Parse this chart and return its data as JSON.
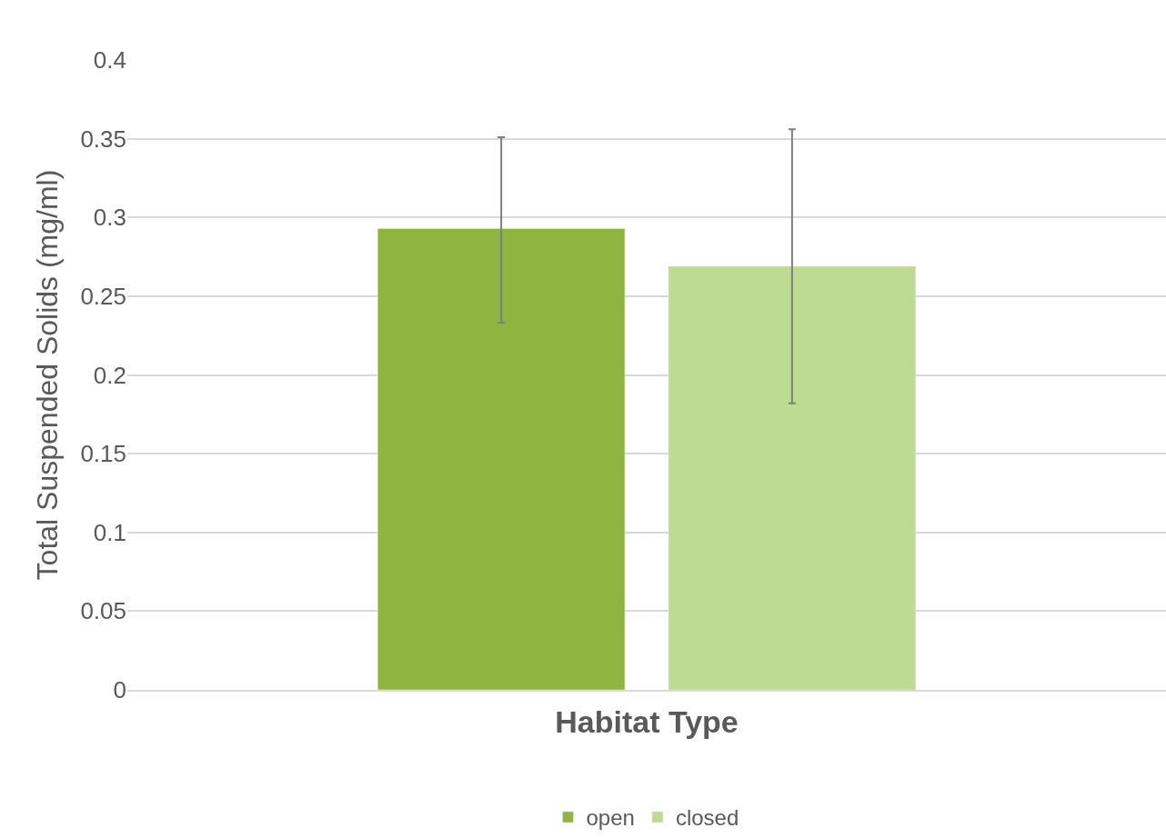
{
  "chart_data": {
    "type": "bar",
    "xlabel": "Habitat Type",
    "ylabel": "Total Suspended Solids (mg/ml)",
    "categories": [
      null
    ],
    "series": [
      {
        "name": "open",
        "color": "#8fb440",
        "values": [
          0.293
        ],
        "errors": [
          [
            0.233,
            0.351
          ]
        ]
      },
      {
        "name": "closed",
        "color": "#bedb92",
        "values": [
          0.269
        ],
        "errors": [
          [
            0.182,
            0.356
          ]
        ]
      }
    ],
    "ylim": [
      0,
      0.4
    ],
    "yticks": [
      0,
      0.05,
      0.1,
      0.15,
      0.2,
      0.25,
      0.3,
      0.35,
      0.4
    ],
    "grid": "y",
    "legend": "bottom"
  }
}
